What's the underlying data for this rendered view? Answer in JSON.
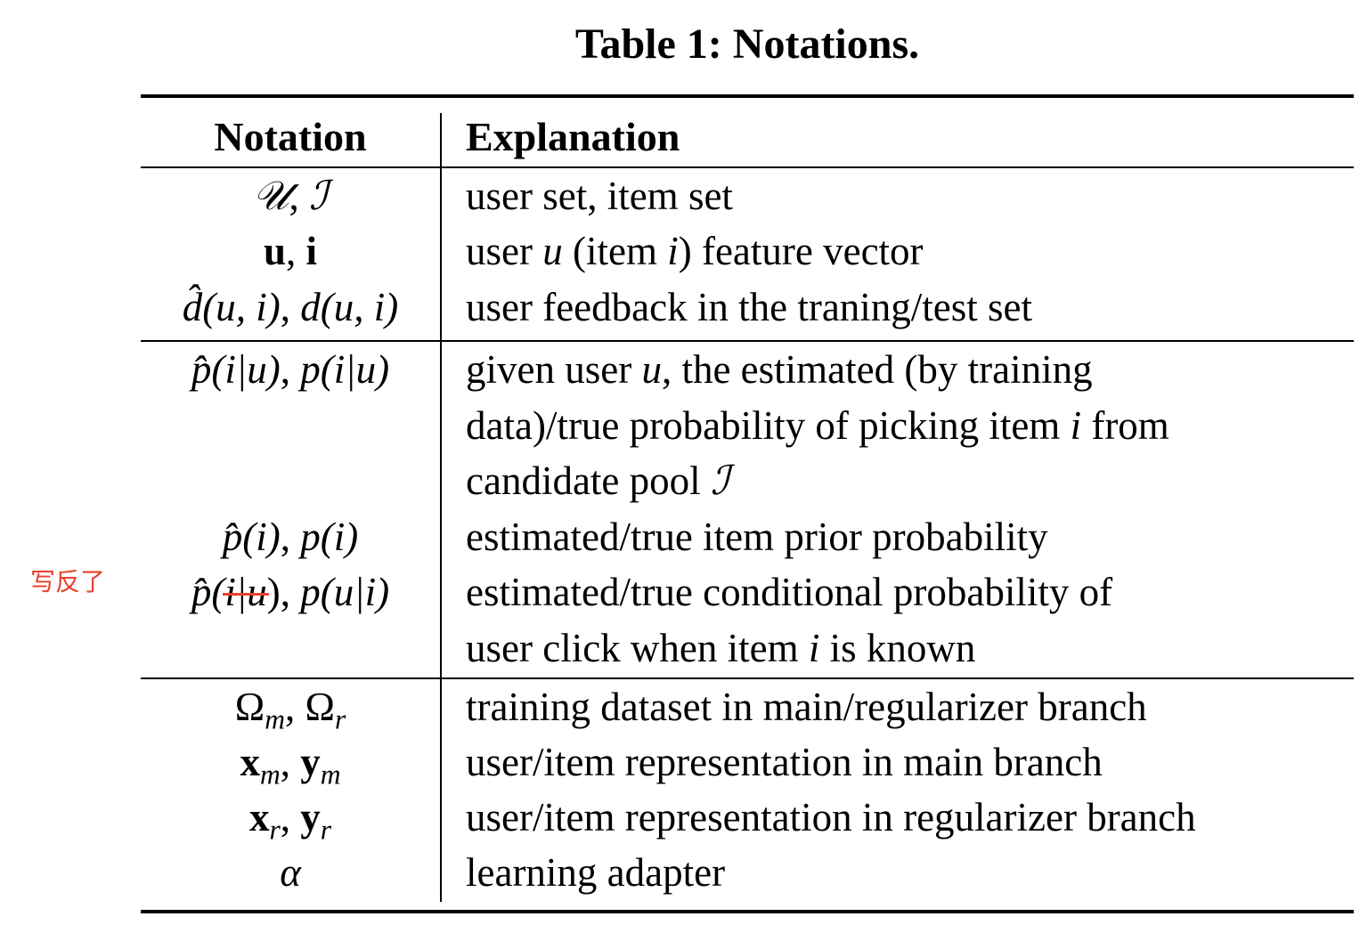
{
  "caption": "Table 1: Notations.",
  "headers": {
    "notation": "Notation",
    "explanation": "Explanation"
  },
  "groups": [
    {
      "rows": [
        {
          "notation_parts": [
            "𝒰",
            ", ",
            "ℐ"
          ],
          "explanation_lines": [
            "user set, item set"
          ]
        },
        {
          "notation_parts": [
            "u",
            ", ",
            "i"
          ],
          "explanation_lines": [
            "user ",
            "u",
            " (item ",
            "i",
            ") feature vector"
          ]
        },
        {
          "notation_parts": [
            "d̂(u, i)",
            ", ",
            "d(u, i)"
          ],
          "explanation_lines": [
            "user feedback in the traning/test set"
          ]
        }
      ]
    },
    {
      "rows": [
        {
          "notation_parts": [
            "p̂(i|u)",
            ", ",
            "p(i|u)"
          ],
          "explanation_lines": [
            "given user ",
            "u",
            ", the estimated (by training",
            "data)/true probability of picking item ",
            "i",
            " from",
            "candidate pool ",
            "ℐ"
          ]
        },
        {
          "notation_parts": [
            "p̂(i)",
            ", ",
            "p(i)"
          ],
          "explanation_lines": [
            "estimated/true item prior probability"
          ]
        },
        {
          "notation_parts": [
            "p̂(",
            "i|u",
            "), ",
            "p(u|i)"
          ],
          "explanation_lines": [
            "estimated/true conditional probability of",
            "user click when item ",
            "i",
            " is known"
          ]
        }
      ]
    },
    {
      "rows": [
        {
          "notation_parts": [
            "Ω",
            "m",
            ", Ω",
            "r"
          ],
          "explanation_lines": [
            "training dataset in main/regularizer branch"
          ]
        },
        {
          "notation_parts": [
            "x",
            "m",
            ", ",
            "y",
            "m"
          ],
          "explanation_lines": [
            "user/item representation in main branch"
          ]
        },
        {
          "notation_parts": [
            "x",
            "r",
            ", ",
            "y",
            "r"
          ],
          "explanation_lines": [
            "user/item representation in regularizer branch"
          ]
        },
        {
          "notation_parts": [
            "α"
          ],
          "explanation_lines": [
            "learning adapter"
          ]
        }
      ]
    }
  ],
  "annotation": {
    "note": "写反了",
    "color": "#e8422c"
  }
}
